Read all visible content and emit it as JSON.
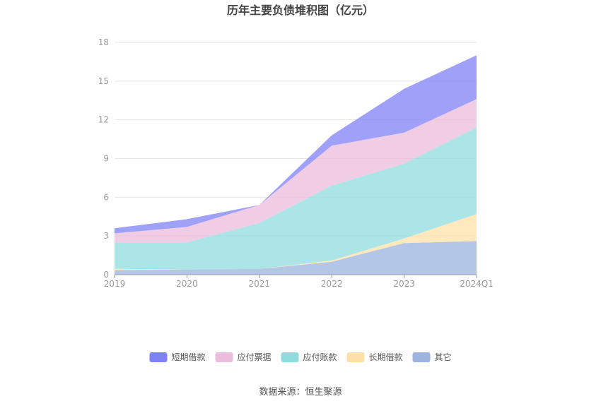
{
  "chart_data": {
    "type": "area",
    "stacked": true,
    "title": "历年主要负债堆积图（亿元）",
    "categories": [
      "2019",
      "2020",
      "2021",
      "2022",
      "2023",
      "2024Q1"
    ],
    "ylim": [
      0,
      18
    ],
    "yticks": [
      0,
      3,
      6,
      9,
      12,
      15,
      18
    ],
    "grid": true,
    "legend_position": "bottom",
    "series": [
      {
        "name": "其它",
        "color": "#9bb3de",
        "values": [
          0.35,
          0.4,
          0.45,
          1.0,
          2.45,
          2.6
        ]
      },
      {
        "name": "长期借款",
        "color": "#fde0a8",
        "values": [
          0.1,
          0.0,
          0.0,
          0.1,
          0.35,
          2.1
        ]
      },
      {
        "name": "应付账款",
        "color": "#8fdcdc",
        "values": [
          2.05,
          2.1,
          3.55,
          5.8,
          5.8,
          6.7
        ]
      },
      {
        "name": "应付票据",
        "color": "#ecbcdc",
        "values": [
          0.7,
          1.2,
          1.4,
          3.1,
          2.4,
          2.2
        ]
      },
      {
        "name": "短期借款",
        "color": "#7f82f5",
        "values": [
          0.4,
          0.6,
          0.0,
          0.8,
          3.4,
          3.4
        ]
      }
    ],
    "legend_order": [
      "短期借款",
      "应付票据",
      "应付账款",
      "长期借款",
      "其它"
    ]
  },
  "source_label": "数据来源：恒生聚源"
}
